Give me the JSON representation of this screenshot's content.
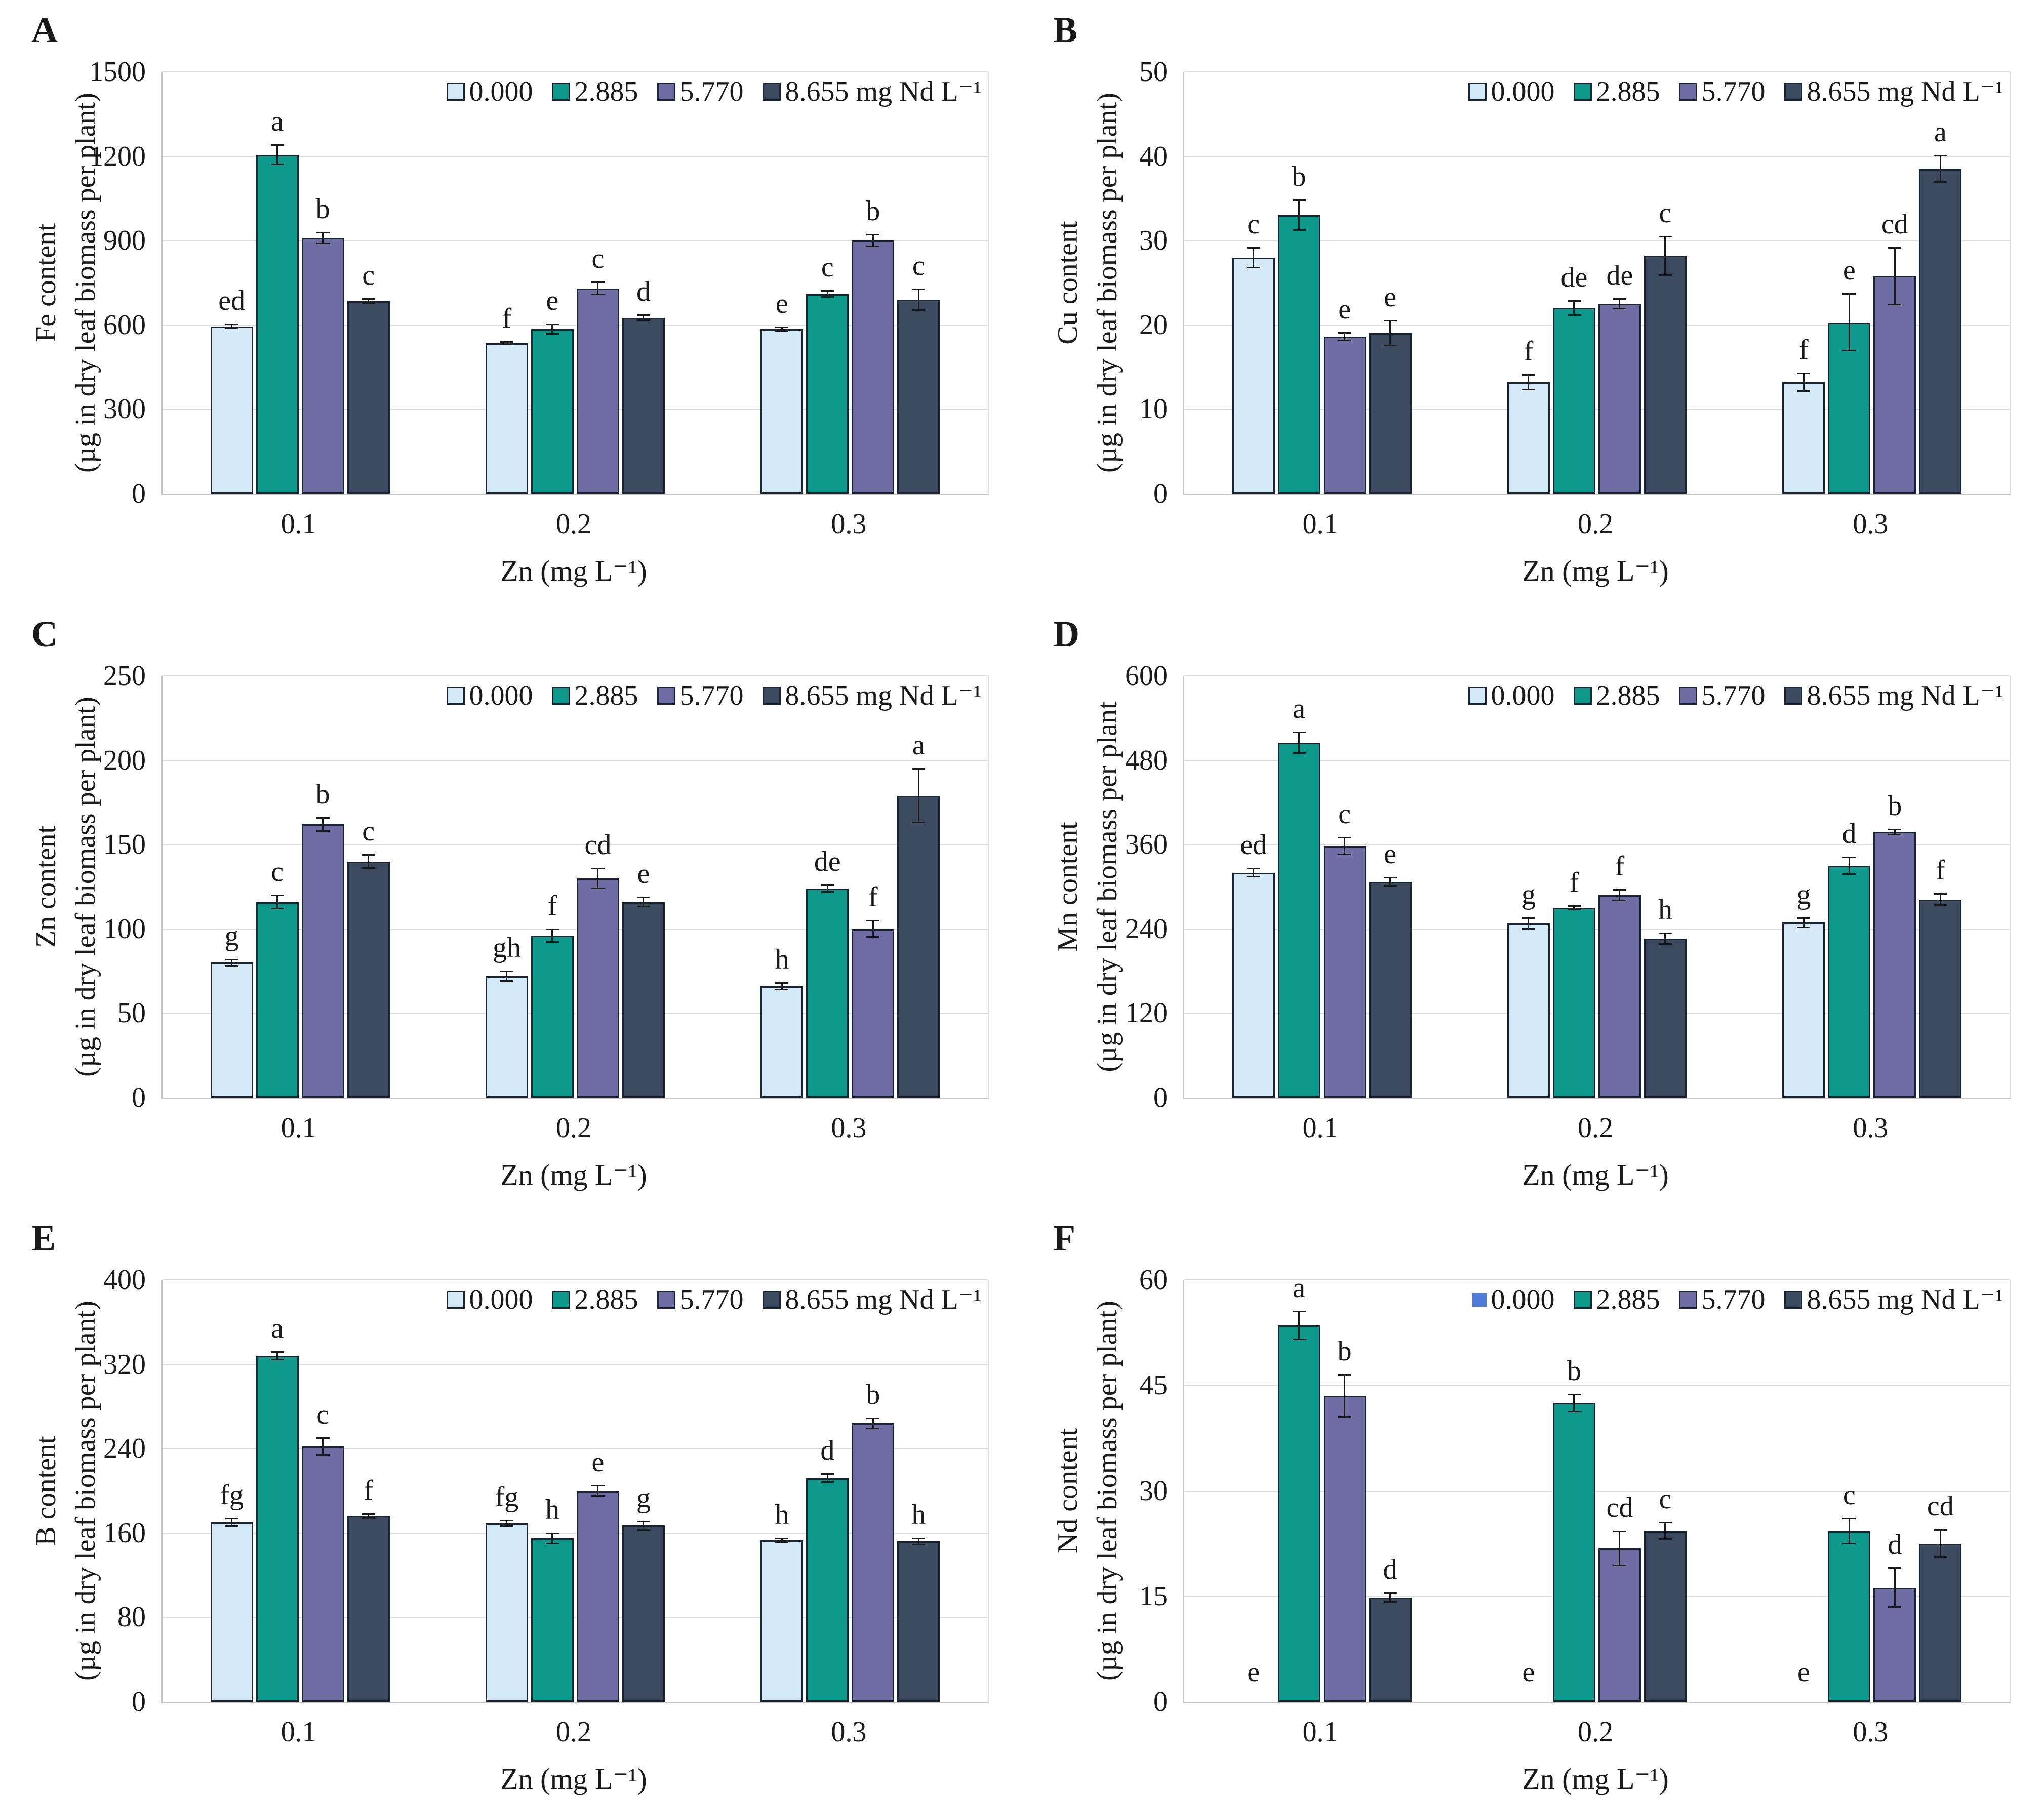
{
  "figure": {
    "x_title": "Zn (mg L⁻¹)",
    "legend": [
      "0.000",
      "2.885",
      "5.770",
      "8.655 mg Nd L⁻¹"
    ],
    "series_colors": [
      "#d4e9f7",
      "#0d998c",
      "#6f6ca4",
      "#3c4a5f"
    ],
    "bar_border_color": "#1b2433",
    "gridline_color": "#dcdcdc",
    "axis_color": "#c3c3c3",
    "error_bar_color": "#1a1a1a",
    "panel_f_zero_swatch_color": "#4d7bd6"
  },
  "chart_data": [
    {
      "type": "bar",
      "panel_label": "A",
      "ylabel_line1": "Fe content",
      "ylabel_line2": "(µg in dry leaf biomass per plant)",
      "xlabel": "Zn (mg L⁻¹)",
      "ylim": [
        0,
        1500
      ],
      "yticks": [
        0,
        300,
        600,
        900,
        1200,
        1500
      ],
      "categories": [
        "0.1",
        "0.2",
        "0.3"
      ],
      "legend_position": "top-right-inside",
      "grid": true,
      "series": [
        {
          "name": "0.000",
          "values": [
            595,
            535,
            585
          ],
          "errors": [
            8,
            6,
            8
          ],
          "letters": [
            "ed",
            "f",
            "e"
          ]
        },
        {
          "name": "2.885",
          "values": [
            1205,
            585,
            710
          ],
          "errors": [
            35,
            18,
            12
          ],
          "letters": [
            "a",
            "e",
            "c"
          ]
        },
        {
          "name": "5.770",
          "values": [
            910,
            730,
            900
          ],
          "errors": [
            20,
            22,
            22
          ],
          "letters": [
            "b",
            "c",
            "b"
          ]
        },
        {
          "name": "8.655 mg Nd L⁻¹",
          "values": [
            685,
            625,
            690
          ],
          "errors": [
            8,
            10,
            38
          ],
          "letters": [
            "c",
            "d",
            "c"
          ]
        }
      ]
    },
    {
      "type": "bar",
      "panel_label": "B",
      "ylabel_line1": "Cu content",
      "ylabel_line2": "(µg in dry leaf biomass per plant)",
      "xlabel": "Zn (mg L⁻¹)",
      "ylim": [
        0,
        50
      ],
      "yticks": [
        0,
        10,
        20,
        30,
        40,
        50
      ],
      "categories": [
        "0.1",
        "0.2",
        "0.3"
      ],
      "legend_position": "top-right-inside",
      "grid": true,
      "series": [
        {
          "name": "0.000",
          "values": [
            28,
            13.2,
            13.2
          ],
          "errors": [
            1.2,
            0.9,
            1.1
          ],
          "letters": [
            "c",
            "f",
            "f"
          ]
        },
        {
          "name": "2.885",
          "values": [
            33,
            22,
            20.3
          ],
          "errors": [
            1.8,
            0.9,
            3.4
          ],
          "letters": [
            "b",
            "de",
            "e"
          ]
        },
        {
          "name": "5.770",
          "values": [
            18.6,
            22.5,
            25.8
          ],
          "errors": [
            0.5,
            0.6,
            3.4
          ],
          "letters": [
            "e",
            "de",
            "cd"
          ]
        },
        {
          "name": "8.655 mg Nd L⁻¹",
          "values": [
            19,
            28.2,
            38.5
          ],
          "errors": [
            1.5,
            2.3,
            1.6
          ],
          "letters": [
            "e",
            "c",
            "a"
          ]
        }
      ]
    },
    {
      "type": "bar",
      "panel_label": "C",
      "ylabel_line1": "Zn content",
      "ylabel_line2": "(µg in dry leaf biomass per plant)",
      "xlabel": "Zn (mg L⁻¹)",
      "ylim": [
        0,
        250
      ],
      "yticks": [
        0,
        50,
        100,
        150,
        200,
        250
      ],
      "categories": [
        "0.1",
        "0.2",
        "0.3"
      ],
      "legend_position": "top-right-inside",
      "grid": true,
      "series": [
        {
          "name": "0.000",
          "values": [
            80,
            72,
            66
          ],
          "errors": [
            2,
            3,
            2
          ],
          "letters": [
            "g",
            "gh",
            "h"
          ]
        },
        {
          "name": "2.885",
          "values": [
            116,
            96,
            124
          ],
          "errors": [
            4,
            4,
            2
          ],
          "letters": [
            "c",
            "f",
            "de"
          ]
        },
        {
          "name": "5.770",
          "values": [
            162,
            130,
            100
          ],
          "errors": [
            4,
            6,
            5
          ],
          "letters": [
            "b",
            "cd",
            "f"
          ]
        },
        {
          "name": "8.655 mg Nd L⁻¹",
          "values": [
            140,
            116,
            179
          ],
          "errors": [
            4,
            3,
            16
          ],
          "letters": [
            "c",
            "e",
            "a"
          ]
        }
      ]
    },
    {
      "type": "bar",
      "panel_label": "D",
      "ylabel_line1": "Mn content",
      "ylabel_line2": "(µg in dry leaf biomass per plant",
      "xlabel": "Zn (mg L⁻¹)",
      "ylim": [
        0,
        600
      ],
      "yticks": [
        0,
        120,
        240,
        360,
        480,
        600
      ],
      "categories": [
        "0.1",
        "0.2",
        "0.3"
      ],
      "legend_position": "top-right-inside",
      "grid": true,
      "series": [
        {
          "name": "0.000",
          "values": [
            320,
            248,
            249
          ],
          "errors": [
            6,
            8,
            7
          ],
          "letters": [
            "ed",
            "g",
            "g"
          ]
        },
        {
          "name": "2.885",
          "values": [
            505,
            270,
            330
          ],
          "errors": [
            15,
            3,
            12
          ],
          "letters": [
            "a",
            "f",
            "d"
          ]
        },
        {
          "name": "5.770",
          "values": [
            358,
            288,
            378
          ],
          "errors": [
            12,
            8,
            4
          ],
          "letters": [
            "c",
            "f",
            "b"
          ]
        },
        {
          "name": "8.655 mg Nd L⁻¹",
          "values": [
            307,
            226,
            282
          ],
          "errors": [
            6,
            8,
            8
          ],
          "letters": [
            "e",
            "h",
            "f"
          ]
        }
      ]
    },
    {
      "type": "bar",
      "panel_label": "E",
      "ylabel_line1": "B content",
      "ylabel_line2": "(µg in dry leaf biomass per plant)",
      "xlabel": "Zn (mg L⁻¹)",
      "ylim": [
        0,
        400
      ],
      "yticks": [
        0,
        80,
        160,
        240,
        320,
        400
      ],
      "categories": [
        "0.1",
        "0.2",
        "0.3"
      ],
      "legend_position": "top-right-inside",
      "grid": true,
      "series": [
        {
          "name": "0.000",
          "values": [
            170,
            169,
            153
          ],
          "errors": [
            4,
            3,
            2
          ],
          "letters": [
            "fg",
            "fg",
            "h"
          ]
        },
        {
          "name": "2.885",
          "values": [
            328,
            155,
            212
          ],
          "errors": [
            4,
            5,
            4
          ],
          "letters": [
            "a",
            "h",
            "d"
          ]
        },
        {
          "name": "5.770",
          "values": [
            242,
            200,
            264
          ],
          "errors": [
            8,
            5,
            5
          ],
          "letters": [
            "c",
            "e",
            "b"
          ]
        },
        {
          "name": "8.655 mg Nd L⁻¹",
          "values": [
            176,
            167,
            152
          ],
          "errors": [
            2,
            4,
            3
          ],
          "letters": [
            "f",
            "g",
            "h"
          ]
        }
      ]
    },
    {
      "type": "bar",
      "panel_label": "F",
      "ylabel_line1": "Nd content",
      "ylabel_line2": "(µg in dry leaf biomass per plant)",
      "xlabel": "Zn (mg L⁻¹)",
      "ylim": [
        0,
        60
      ],
      "yticks": [
        0,
        15,
        30,
        45,
        60
      ],
      "categories": [
        "0.1",
        "0.2",
        "0.3"
      ],
      "legend_position": "top-right-inside",
      "grid": true,
      "zero_series_plain_swatch": true,
      "series": [
        {
          "name": "0.000",
          "values": [
            0,
            0,
            0
          ],
          "errors": [
            0,
            0,
            0
          ],
          "letters": [
            "e",
            "e",
            "e"
          ]
        },
        {
          "name": "2.885",
          "values": [
            53.5,
            42.5,
            24.3
          ],
          "errors": [
            2,
            1.2,
            1.8
          ],
          "letters": [
            "a",
            "b",
            "c"
          ]
        },
        {
          "name": "5.770",
          "values": [
            43.5,
            21.8,
            16.2
          ],
          "errors": [
            3,
            2.5,
            2.8
          ],
          "letters": [
            "b",
            "cd",
            "d"
          ]
        },
        {
          "name": "8.655 mg Nd L⁻¹",
          "values": [
            14.8,
            24.3,
            22.5
          ],
          "errors": [
            0.7,
            1.2,
            2
          ],
          "letters": [
            "d",
            "c",
            "cd"
          ]
        }
      ]
    }
  ]
}
